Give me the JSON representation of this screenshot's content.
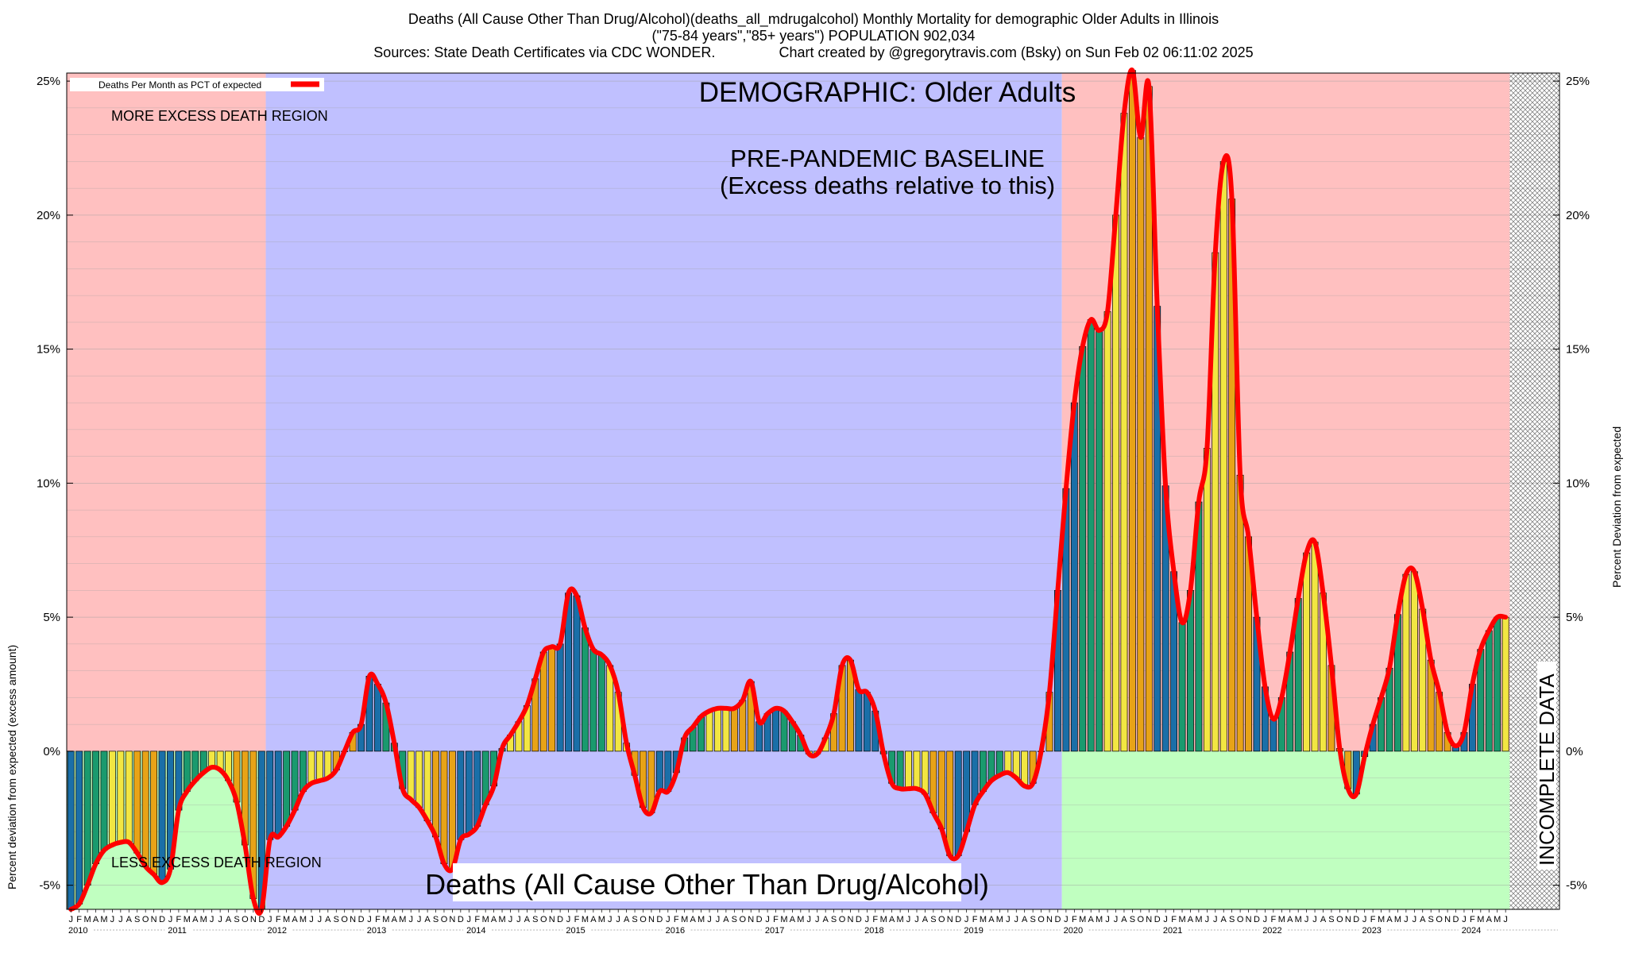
{
  "chart_data": {
    "type": "bar",
    "title_lines": [
      "Deaths (All Cause Other Than Drug/Alcohol)(deaths_all_mdrugalcohol) Monthly Mortality for demographic Older Adults in Illinois",
      "(\"75-84 years\",\"85+ years\") POPULATION 902,034",
      "Sources: State Death Certificates via CDC WONDER.                Chart created by @gregorytravis.com (Bsky) on Sun Feb 02 06:11:02 2025"
    ],
    "ylabel_left": "Percent deviation from expected (excess amount)",
    "ylabel_right": "Percent Deviation from expected",
    "ylim": [
      -5.9,
      25.3
    ],
    "yticks": [
      -5,
      0,
      5,
      10,
      15,
      20,
      25
    ],
    "ytick_labels": [
      "-5%",
      "0%",
      "5%",
      "10%",
      "15%",
      "20%",
      "25%"
    ],
    "grid": true,
    "legend": {
      "label": "Deaths Per Month as PCT of expected",
      "placement": "top-left",
      "color": "#ff0000"
    },
    "annotations": {
      "demographic": "DEMOGRAPHIC: Older Adults",
      "baseline_line1": "PRE-PANDEMIC BASELINE",
      "baseline_line2": "(Excess deaths relative to this)",
      "more_region": "MORE EXCESS DEATH REGION",
      "less_region": "LESS EXCESS DEATH REGION",
      "incomplete": "INCOMPLETE DATA",
      "bottom_title": "Deaths (All Cause Other Than Drug/Alcohol)"
    },
    "regions": [
      {
        "name": "more-excess-2010-2011",
        "from_month": 0,
        "to_month": 24,
        "ymin": 0,
        "ymax": 25.3,
        "color": "#ffc0c0"
      },
      {
        "name": "less-excess-2010-2011",
        "from_month": 0,
        "to_month": 24,
        "ymin": -5.9,
        "ymax": 0,
        "color": "#c0ffc0"
      },
      {
        "name": "pre-pandemic-baseline",
        "from_month": 24,
        "to_month": 120,
        "ymin": -5.9,
        "ymax": 25.3,
        "color": "#c0c0ff"
      },
      {
        "name": "more-excess-2020-2024",
        "from_month": 120,
        "to_month": 174,
        "ymin": 0,
        "ymax": 25.3,
        "color": "#ffc0c0"
      },
      {
        "name": "less-excess-2020-2024",
        "from_month": 120,
        "to_month": 174,
        "ymin": -5.9,
        "ymax": 0,
        "color": "#c0ffc0"
      }
    ],
    "incomplete_from_month": 174,
    "bar_colors_by_month": [
      "#1a6fa8",
      "#1a6fa8",
      "#1a9a6e",
      "#1a9a6e",
      "#1a9a6e",
      "#f2e642",
      "#f2e642",
      "#f2e642",
      "#e8a317",
      "#e8a317",
      "#e8a317",
      "#1a6fa8"
    ],
    "x_month_letters": [
      "J",
      "F",
      "M",
      "A",
      "M",
      "J",
      "J",
      "A",
      "S",
      "O",
      "N",
      "D"
    ],
    "years": [
      "2010",
      "2011",
      "2012",
      "2013",
      "2014",
      "2015",
      "2016",
      "2017",
      "2018",
      "2019",
      "2020",
      "2021",
      "2022",
      "2023",
      "2024"
    ],
    "x_start": "2010-01",
    "values": [
      -5.9,
      -5.7,
      -5.0,
      -4.2,
      -3.7,
      -3.5,
      -3.4,
      -3.4,
      -3.8,
      -4.3,
      -4.6,
      -4.9,
      -4.4,
      -2.2,
      -1.5,
      -1.1,
      -0.8,
      -0.6,
      -0.7,
      -1.1,
      -1.9,
      -3.5,
      -5.5,
      -5.9,
      -3.3,
      -3.2,
      -2.8,
      -2.2,
      -1.5,
      -1.2,
      -1.1,
      -1.0,
      -0.7,
      0.0,
      0.7,
      1.0,
      2.8,
      2.5,
      1.8,
      0.3,
      -1.4,
      -1.8,
      -2.1,
      -2.6,
      -3.2,
      -4.2,
      -4.4,
      -3.3,
      -3.1,
      -2.8,
      -2.0,
      -1.3,
      0.1,
      0.6,
      1.1,
      1.7,
      2.7,
      3.7,
      3.9,
      4.0,
      5.9,
      5.8,
      4.6,
      3.8,
      3.6,
      3.2,
      2.2,
      0.3,
      -0.9,
      -2.1,
      -2.3,
      -1.5,
      -1.5,
      -0.8,
      0.5,
      0.9,
      1.3,
      1.5,
      1.6,
      1.6,
      1.6,
      1.9,
      2.6,
      1.1,
      1.4,
      1.6,
      1.5,
      1.1,
      0.6,
      -0.1,
      -0.1,
      0.5,
      1.4,
      3.2,
      3.4,
      2.3,
      2.2,
      1.5,
      -0.1,
      -1.2,
      -1.4,
      -1.4,
      -1.4,
      -1.6,
      -2.3,
      -2.9,
      -3.9,
      -3.9,
      -3.0,
      -2.0,
      -1.5,
      -1.1,
      -0.9,
      -0.8,
      -1.0,
      -1.3,
      -1.2,
      0.0,
      2.2,
      6.0,
      9.8,
      13.0,
      15.1,
      16.1,
      15.7,
      16.4,
      20.0,
      23.8,
      25.4,
      22.9,
      24.8,
      16.6,
      9.9,
      6.7,
      4.8,
      6.0,
      9.3,
      11.3,
      18.6,
      22.0,
      20.6,
      10.3,
      8.0,
      5.0,
      2.4,
      1.2,
      2.0,
      3.7,
      5.7,
      7.4,
      7.8,
      5.9,
      3.2,
      0.1,
      -1.4,
      -1.6,
      -0.2,
      1.0,
      2.0,
      3.1,
      5.1,
      6.6,
      6.7,
      5.3,
      3.4,
      2.2,
      0.7,
      0.2,
      0.7,
      2.5,
      3.8,
      4.5,
      5.0,
      5.0
    ]
  }
}
